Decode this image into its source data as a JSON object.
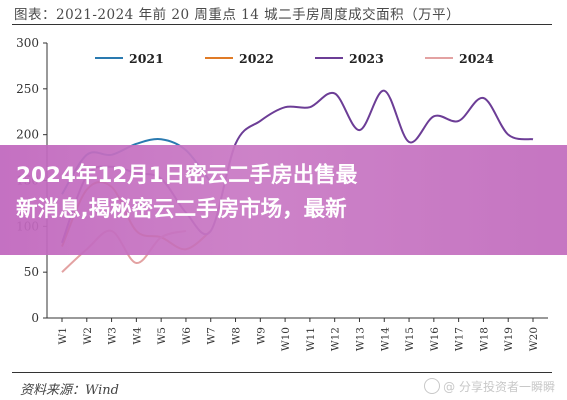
{
  "figure": {
    "caption": "图表：2021-2024 年前 20 周重点 14 城二手房周度成交面积（万平）",
    "source": "资料来源：Wind"
  },
  "overlay": {
    "headline_line1": "2024年12月1日密云二手房出售最",
    "headline_line2": "新消息,揭秘密云二手房市场，最新",
    "watermark": "@ 分享投资者一瞬瞬"
  },
  "chart_data": {
    "type": "line",
    "x": [
      "W1",
      "W2",
      "W3",
      "W4",
      "W5",
      "W6",
      "W7",
      "W8",
      "W9",
      "W10",
      "W11",
      "W12",
      "W13",
      "W14",
      "W15",
      "W16",
      "W17",
      "W18",
      "W19",
      "W20"
    ],
    "ylim": [
      0,
      300
    ],
    "yticks": [
      0,
      50,
      100,
      150,
      200,
      250,
      300
    ],
    "legend_position": "top",
    "series": [
      {
        "name": "2021",
        "color": "#2a7ab0",
        "values": [
          135,
          178,
          178,
          190,
          195,
          183,
          148,
          null,
          null,
          null,
          null,
          null,
          null,
          null,
          null,
          null,
          null,
          null,
          null,
          null
        ]
      },
      {
        "name": "2022",
        "color": "#e07b26",
        "values": [
          78,
          140,
          143,
          95,
          88,
          75,
          95,
          null,
          null,
          null,
          null,
          null,
          null,
          null,
          null,
          null,
          null,
          null,
          null,
          null
        ]
      },
      {
        "name": "2023",
        "color": "#6c3d96",
        "values": [
          82,
          155,
          165,
          158,
          152,
          115,
          95,
          190,
          215,
          230,
          230,
          245,
          205,
          248,
          192,
          220,
          215,
          240,
          200,
          195
        ]
      },
      {
        "name": "2024",
        "color": "#e3a2a2",
        "values": [
          50,
          75,
          95,
          60,
          88,
          95,
          null,
          null,
          null,
          null,
          null,
          null,
          null,
          null,
          null,
          null,
          null,
          null,
          null,
          null
        ]
      }
    ]
  }
}
